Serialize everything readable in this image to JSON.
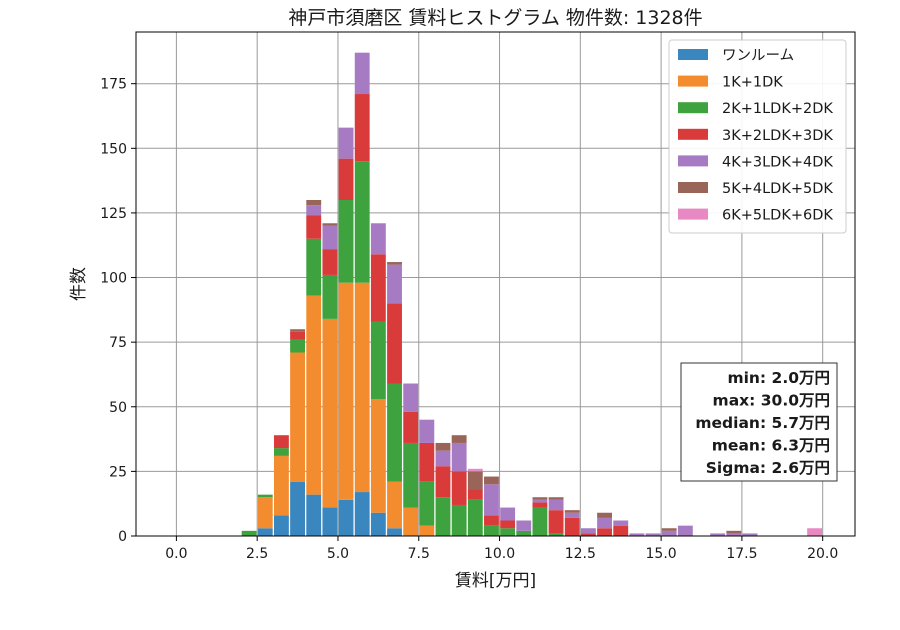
{
  "chart_data": {
    "type": "bar",
    "stacked": true,
    "title": "神戸市須磨区 賃料ヒストグラム 物件数: 1328件",
    "xlabel": "賃料[万円]",
    "ylabel": "件数",
    "xlim": [
      -1.25,
      21.0
    ],
    "ylim": [
      0,
      195
    ],
    "xticks": [
      0.0,
      2.5,
      5.0,
      7.5,
      10.0,
      12.5,
      15.0,
      17.5,
      20.0
    ],
    "xtick_labels": [
      "0.0",
      "2.5",
      "5.0",
      "7.5",
      "10.0",
      "12.5",
      "15.0",
      "17.5",
      "20.0"
    ],
    "yticks": [
      0,
      25,
      50,
      75,
      100,
      125,
      150,
      175
    ],
    "ytick_labels": [
      "0",
      "25",
      "50",
      "75",
      "100",
      "125",
      "150",
      "175"
    ],
    "grid": true,
    "legend_position": "top-right",
    "bin_width": 0.5,
    "x": [
      2.0,
      2.5,
      3.0,
      3.5,
      4.0,
      4.5,
      5.0,
      5.5,
      6.0,
      6.5,
      7.0,
      7.5,
      8.0,
      8.5,
      9.0,
      9.5,
      10.0,
      10.5,
      11.0,
      11.5,
      12.0,
      12.5,
      13.0,
      13.5,
      14.0,
      14.5,
      15.0,
      15.5,
      16.0,
      16.5,
      17.0,
      17.5,
      18.0,
      18.5,
      19.0,
      19.5
    ],
    "series": [
      {
        "name": "ワンルーム",
        "color": "#3a86be",
        "values": [
          0,
          3,
          8,
          21,
          16,
          11,
          14,
          17,
          9,
          3,
          0,
          0,
          0,
          0,
          0,
          0,
          0,
          0,
          0,
          0,
          0,
          0,
          0,
          0,
          0,
          0,
          0,
          0,
          0,
          0,
          0,
          0,
          0,
          0,
          0,
          0
        ]
      },
      {
        "name": "1K+1DK",
        "color": "#f28c2e",
        "values": [
          0,
          12,
          23,
          50,
          77,
          73,
          84,
          81,
          44,
          18,
          11,
          4,
          0,
          0,
          0,
          0,
          0,
          0,
          0,
          0,
          0,
          0,
          0,
          0,
          0,
          0,
          0,
          0,
          0,
          0,
          0,
          0,
          0,
          0,
          0,
          0
        ]
      },
      {
        "name": "2K+1LDK+2DK",
        "color": "#3ea23e",
        "values": [
          2,
          1,
          3,
          5,
          22,
          17,
          32,
          47,
          30,
          38,
          25,
          17,
          15,
          12,
          14,
          4,
          3,
          2,
          11,
          1,
          0,
          0,
          0,
          0,
          0,
          0,
          0,
          0,
          0,
          0,
          0,
          0,
          0,
          0,
          0,
          0
        ]
      },
      {
        "name": "3K+2LDK+3DK",
        "color": "#d93b3b",
        "values": [
          0,
          0,
          5,
          3,
          9,
          10,
          16,
          26,
          26,
          31,
          12,
          15,
          12,
          13,
          4,
          4,
          3,
          0,
          2,
          9,
          7,
          1,
          3,
          4,
          0,
          0,
          0,
          0,
          0,
          0,
          0,
          0,
          0,
          0,
          0,
          0
        ]
      },
      {
        "name": "4K+3LDK+4DK",
        "color": "#a77bc4",
        "values": [
          0,
          0,
          0,
          0,
          4,
          9,
          12,
          16,
          12,
          15,
          11,
          9,
          6,
          11,
          0,
          12,
          5,
          4,
          1,
          4,
          2,
          2,
          4,
          2,
          1,
          1,
          2,
          4,
          0,
          1,
          1,
          1,
          0,
          0,
          0,
          0
        ]
      },
      {
        "name": "5K+4LDK+5DK",
        "color": "#9a6559",
        "values": [
          0,
          0,
          0,
          1,
          2,
          1,
          0,
          0,
          0,
          1,
          0,
          0,
          3,
          3,
          7,
          3,
          0,
          0,
          1,
          1,
          1,
          0,
          2,
          0,
          0,
          0,
          1,
          0,
          0,
          0,
          1,
          0,
          0,
          0,
          0,
          0
        ]
      },
      {
        "name": "6K+5LDK+6DK",
        "color": "#e889c4",
        "values": [
          0,
          0,
          0,
          0,
          0,
          0,
          0,
          0,
          0,
          0,
          0,
          0,
          0,
          0,
          1,
          0,
          0,
          0,
          0,
          0,
          0,
          0,
          0,
          0,
          0,
          0,
          0,
          0,
          0,
          0,
          0,
          0,
          0,
          0,
          0,
          3
        ]
      }
    ],
    "stats_box": {
      "min": "min: 2.0万円",
      "max": "max: 30.0万円",
      "median": "median: 5.7万円",
      "mean": "mean: 6.3万円",
      "sigma": "Sigma: 2.6万円"
    }
  }
}
